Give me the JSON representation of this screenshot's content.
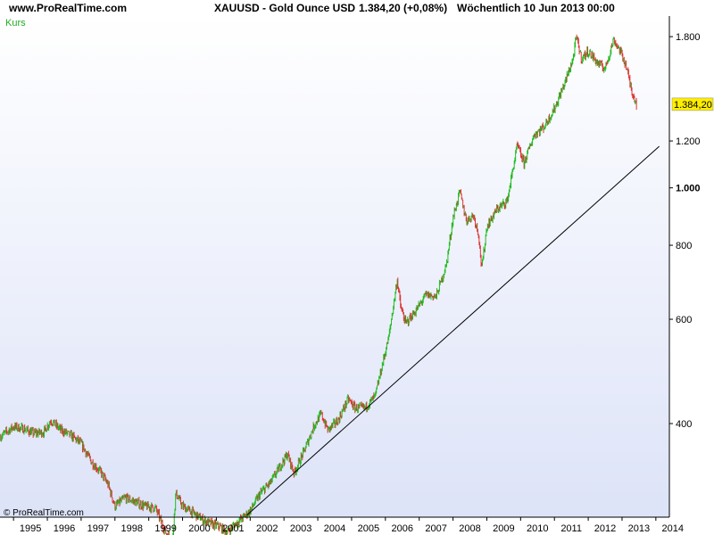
{
  "header": {
    "site": "www.ProRealTime.com",
    "symbol": "XAUUSD - Gold Ounce USD",
    "price": "1.384,20 (+0,08%)",
    "period": "Wöchentlich  10 Jun 2013 00:00"
  },
  "series_label": "Kurs",
  "copyright": "© ProRealTime.com",
  "last_price_tag": "1.384,20",
  "colors": {
    "up": "#22bb22",
    "down": "#dd3333",
    "trendline": "#000000",
    "price_tag_bg": "#ffee00",
    "bg_top": "#ffffff",
    "bg_bottom": "#dde3f8"
  },
  "chart_data": {
    "type": "candlestick",
    "y_scale": "log",
    "xlim": [
      1994.6,
      2014.4
    ],
    "ylim": [
      278,
      1950
    ],
    "x_ticks": [
      "1995",
      "1996",
      "1997",
      "1998",
      "1999",
      "2000",
      "2001",
      "2002",
      "2003",
      "2004",
      "2005",
      "2006",
      "2007",
      "2008",
      "2009",
      "2010",
      "2011",
      "2012",
      "2013",
      "2014"
    ],
    "y_ticks": [
      {
        "value": 1800,
        "label": "1.800",
        "bold": false
      },
      {
        "value": 1200,
        "label": "1.200",
        "bold": false
      },
      {
        "value": 1000,
        "label": "1.000",
        "bold": true
      },
      {
        "value": 800,
        "label": "800",
        "bold": false
      },
      {
        "value": 600,
        "label": "600",
        "bold": false
      },
      {
        "value": 400,
        "label": "400",
        "bold": false
      }
    ],
    "price_path": [
      [
        1994.6,
        380
      ],
      [
        1995.0,
        395
      ],
      [
        1995.3,
        392
      ],
      [
        1995.6,
        385
      ],
      [
        1995.9,
        387
      ],
      [
        1996.1,
        405
      ],
      [
        1996.4,
        390
      ],
      [
        1996.7,
        382
      ],
      [
        1997.0,
        370
      ],
      [
        1997.3,
        345
      ],
      [
        1997.6,
        330
      ],
      [
        1997.8,
        315
      ],
      [
        1998.0,
        290
      ],
      [
        1998.3,
        300
      ],
      [
        1998.6,
        295
      ],
      [
        1998.9,
        290
      ],
      [
        1999.2,
        288
      ],
      [
        1999.5,
        262
      ],
      [
        1999.7,
        255
      ],
      [
        1999.8,
        305
      ],
      [
        2000.0,
        290
      ],
      [
        2000.3,
        283
      ],
      [
        2000.6,
        275
      ],
      [
        2000.9,
        270
      ],
      [
        2001.1,
        268
      ],
      [
        2001.3,
        262
      ],
      [
        2001.6,
        272
      ],
      [
        2001.8,
        278
      ],
      [
        2002.0,
        285
      ],
      [
        2002.3,
        305
      ],
      [
        2002.6,
        318
      ],
      [
        2002.9,
        340
      ],
      [
        2003.1,
        355
      ],
      [
        2003.3,
        330
      ],
      [
        2003.6,
        360
      ],
      [
        2003.9,
        398
      ],
      [
        2004.1,
        415
      ],
      [
        2004.3,
        390
      ],
      [
        2004.6,
        405
      ],
      [
        2004.9,
        440
      ],
      [
        2005.1,
        425
      ],
      [
        2005.4,
        425
      ],
      [
        2005.7,
        445
      ],
      [
        2005.9,
        500
      ],
      [
        2006.1,
        560
      ],
      [
        2006.35,
        700
      ],
      [
        2006.45,
        630
      ],
      [
        2006.6,
        590
      ],
      [
        2006.9,
        620
      ],
      [
        2007.2,
        660
      ],
      [
        2007.5,
        655
      ],
      [
        2007.8,
        740
      ],
      [
        2008.0,
        890
      ],
      [
        2008.2,
        985
      ],
      [
        2008.4,
        880
      ],
      [
        2008.6,
        900
      ],
      [
        2008.75,
        840
      ],
      [
        2008.85,
        730
      ],
      [
        2009.0,
        860
      ],
      [
        2009.3,
        920
      ],
      [
        2009.6,
        950
      ],
      [
        2009.9,
        1180
      ],
      [
        2010.1,
        1100
      ],
      [
        2010.4,
        1230
      ],
      [
        2010.7,
        1270
      ],
      [
        2011.0,
        1360
      ],
      [
        2011.3,
        1500
      ],
      [
        2011.55,
        1650
      ],
      [
        2011.65,
        1800
      ],
      [
        2011.8,
        1650
      ],
      [
        2012.0,
        1700
      ],
      [
        2012.3,
        1620
      ],
      [
        2012.5,
        1590
      ],
      [
        2012.75,
        1780
      ],
      [
        2012.95,
        1700
      ],
      [
        2013.1,
        1620
      ],
      [
        2013.3,
        1450
      ],
      [
        2013.44,
        1384
      ]
    ],
    "trendline": {
      "x1": 2001.9,
      "y1": 280,
      "x2": 2014.1,
      "y2": 1175
    }
  }
}
